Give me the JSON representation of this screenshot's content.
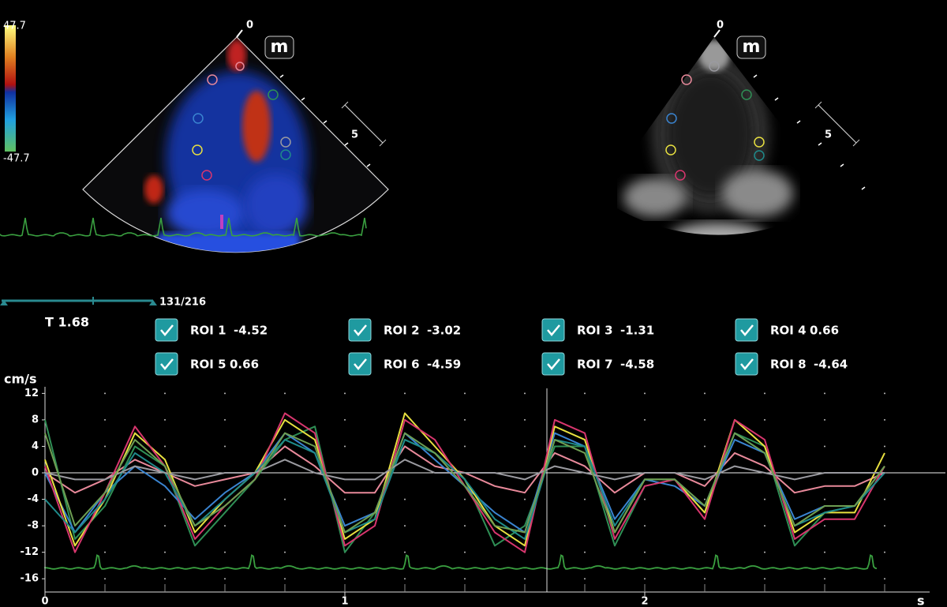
{
  "color_bar": {
    "max_label": "47.7",
    "min_label": "-47.7"
  },
  "scans": [
    {
      "depth_top": "0",
      "depth_mark": "5",
      "logo": "m"
    },
    {
      "depth_top": "0",
      "depth_mark": "5",
      "logo": "m"
    }
  ],
  "frame_counter": "131/216",
  "cursor_label": "T 1.68",
  "chart_data": {
    "type": "line",
    "ylabel": "cm/s",
    "xlabel": "s",
    "xlim": [
      0,
      2.95
    ],
    "ylim": [
      -18,
      13
    ],
    "xticks": [
      0,
      1,
      2
    ],
    "yticks": [
      12,
      8,
      4,
      0,
      -4,
      -8,
      -12,
      -16
    ],
    "x": [
      0,
      0.1,
      0.2,
      0.3,
      0.4,
      0.5,
      0.6,
      0.7,
      0.8,
      0.9,
      1.0,
      1.1,
      1.2,
      1.3,
      1.4,
      1.5,
      1.6,
      1.7,
      1.8,
      1.9,
      2.0,
      2.1,
      2.2,
      2.3,
      2.4,
      2.5,
      2.6,
      2.7,
      2.8
    ],
    "series": [
      {
        "name": "ROI 1",
        "readout": -4.52,
        "color": "#e8899a",
        "values": [
          0,
          -3,
          -1,
          2,
          0,
          -2,
          -1,
          0,
          4,
          1,
          -3,
          -3,
          4,
          1,
          0,
          -2,
          -3,
          3,
          1,
          -3,
          0,
          0,
          -2,
          3,
          1,
          -3,
          -2,
          -2,
          0
        ]
      },
      {
        "name": "ROI 2",
        "readout": -3.02,
        "color": "#2f8f55",
        "values": [
          8,
          -10,
          -5,
          4,
          1,
          -11,
          -6,
          -1,
          5,
          7,
          -12,
          -6,
          5,
          3,
          -1,
          -11,
          -8,
          4,
          4,
          -11,
          -2,
          -1,
          -6,
          6,
          4,
          -11,
          -6,
          -5,
          1
        ]
      },
      {
        "name": "ROI 3",
        "readout": -1.31,
        "color": "#3a84d0",
        "values": [
          0,
          -9,
          -3,
          1,
          -2,
          -7,
          -3,
          0,
          6,
          3,
          -8,
          -6,
          6,
          2,
          -2,
          -6,
          -9,
          6,
          4,
          -7,
          -1,
          -2,
          -5,
          5,
          3,
          -7,
          -5,
          -5,
          0
        ]
      },
      {
        "name": "ROI 4",
        "readout": 0.66,
        "color": "#e8e040",
        "values": [
          2,
          -11,
          -4,
          6,
          2,
          -9,
          -4,
          0,
          8,
          5,
          -10,
          -7,
          9,
          4,
          -1,
          -8,
          -11,
          7,
          5,
          -9,
          -1,
          -1,
          -6,
          8,
          4,
          -9,
          -6,
          -6,
          3
        ]
      },
      {
        "name": "ROI 5",
        "readout": 0.66,
        "color": "#d8366e",
        "values": [
          1,
          -12,
          -3,
          7,
          1,
          -10,
          -5,
          -1,
          9,
          6,
          -11,
          -8,
          8,
          5,
          -2,
          -9,
          -12,
          8,
          6,
          -10,
          -2,
          -1,
          -7,
          8,
          5,
          -10,
          -7,
          -7,
          1
        ]
      },
      {
        "name": "ROI 6",
        "readout": -4.59,
        "color": "#1f8a8a",
        "values": [
          -4,
          -9,
          -4,
          3,
          0,
          -8,
          -4,
          0,
          5,
          3,
          -9,
          -7,
          5,
          3,
          -1,
          -7,
          -10,
          5,
          4,
          -8,
          -1,
          -1,
          -5,
          6,
          3,
          -8,
          -6,
          -5,
          0
        ]
      },
      {
        "name": "ROI 7",
        "readout": -4.58,
        "color": "#9a9aa0",
        "values": [
          0,
          -1,
          -1,
          1,
          0,
          -1,
          0,
          0,
          2,
          0,
          -1,
          -1,
          2,
          0,
          0,
          0,
          -1,
          1,
          0,
          -1,
          0,
          0,
          -1,
          1,
          0,
          -1,
          0,
          0,
          0
        ]
      },
      {
        "name": "ROI 8",
        "readout": -4.64,
        "color": "#6e9e52",
        "values": [
          6,
          -8,
          -3,
          5,
          1,
          -8,
          -5,
          -1,
          6,
          4,
          -9,
          -6,
          6,
          3,
          -2,
          -8,
          -9,
          5,
          3,
          -9,
          -1,
          -1,
          -5,
          6,
          3,
          -8,
          -5,
          -5,
          1
        ]
      }
    ]
  }
}
